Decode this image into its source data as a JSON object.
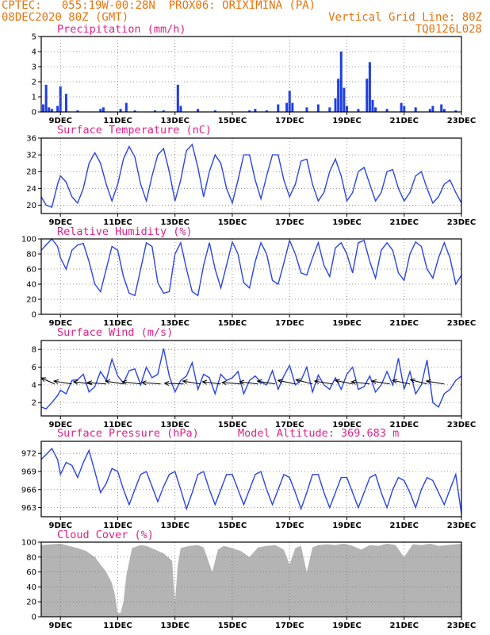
{
  "header": {
    "line1": "CPTEC:   055:19W-00:28N  PROX06: ORIXIMINA (PA)",
    "line2_left": "08DEC2020 80Z (GMT)",
    "line2_right": "Vertical Grid Line: 80Z",
    "line3_right": "TQ0126L028"
  },
  "x_axis": {
    "ticks": [
      "9DEC",
      "11DEC",
      "13DEC",
      "15DEC",
      "17DEC",
      "19DEC",
      "21DEC",
      "23DEC"
    ]
  },
  "colors": {
    "header": "#e8730a",
    "title": "#e0208a",
    "line": "#2a44e6",
    "bar": "#1f3fe0",
    "cloud": "#b4b4b4",
    "grid": "#7a7a7a"
  },
  "chart_data": [
    {
      "type": "bar",
      "title": "Precipitation (mm/h)",
      "xlabel": "",
      "ylabel": "",
      "ylim": [
        0,
        5
      ],
      "yticks": [
        "0",
        "1",
        "2",
        "3",
        "4",
        "5"
      ],
      "x_range_days": [
        8.33,
        23
      ],
      "x_days": [
        8.4,
        8.5,
        8.6,
        8.7,
        8.9,
        9.0,
        9.2,
        9.6,
        10.4,
        10.5,
        11.1,
        11.3,
        11.6,
        12.3,
        12.6,
        13.1,
        13.2,
        13.8,
        14.4,
        15.6,
        15.8,
        16.2,
        16.6,
        16.9,
        17.0,
        17.1,
        17.6,
        18.0,
        18.4,
        18.6,
        18.7,
        18.8,
        18.9,
        19.0,
        19.4,
        19.7,
        19.8,
        19.9,
        20.0,
        20.4,
        20.9,
        21.0,
        21.4,
        21.9,
        22.0,
        22.3,
        22.4,
        22.8
      ],
      "values": [
        0.5,
        1.8,
        0.3,
        0.2,
        0.4,
        1.7,
        1.2,
        0.1,
        0.2,
        0.3,
        0.2,
        0.6,
        0.1,
        0.1,
        0.1,
        1.8,
        0.4,
        0.2,
        0.1,
        0.1,
        0.2,
        0.1,
        0.5,
        0.6,
        1.4,
        0.6,
        0.3,
        0.5,
        0.3,
        0.9,
        2.2,
        4.0,
        1.6,
        0.4,
        0.2,
        2.2,
        3.3,
        0.8,
        0.3,
        0.2,
        0.6,
        0.4,
        0.3,
        0.2,
        0.4,
        0.5,
        0.2,
        0.1
      ]
    },
    {
      "type": "line",
      "title": "Surface Temperature (nC)",
      "xlabel": "",
      "ylabel": "",
      "ylim": [
        18,
        36
      ],
      "yticks": [
        "20",
        "24",
        "28",
        "32",
        "36"
      ],
      "x_range_days": [
        8.33,
        23
      ],
      "days": [
        8.33,
        8.5,
        8.7,
        8.9,
        9.0,
        9.2,
        9.4,
        9.6,
        9.8,
        10.0,
        10.2,
        10.4,
        10.6,
        10.8,
        11.0,
        11.2,
        11.4,
        11.6,
        11.8,
        12.0,
        12.2,
        12.4,
        12.6,
        12.8,
        13.0,
        13.2,
        13.4,
        13.6,
        13.8,
        14.0,
        14.2,
        14.4,
        14.6,
        14.8,
        15.0,
        15.2,
        15.4,
        15.6,
        15.8,
        16.0,
        16.2,
        16.4,
        16.6,
        16.8,
        17.0,
        17.2,
        17.4,
        17.6,
        17.8,
        18.0,
        18.2,
        18.4,
        18.6,
        18.8,
        19.0,
        19.2,
        19.4,
        19.6,
        19.8,
        20.0,
        20.2,
        20.4,
        20.6,
        20.8,
        21.0,
        21.2,
        21.4,
        21.6,
        21.8,
        22.0,
        22.2,
        22.4,
        22.6,
        22.8,
        23.0
      ],
      "values": [
        22,
        20,
        19.5,
        25,
        27,
        25.5,
        22,
        20.5,
        24,
        30,
        32.5,
        30,
        25,
        21,
        25,
        31,
        34,
        31.5,
        25,
        21,
        27,
        32,
        33.5,
        28,
        21,
        26,
        33,
        34.5,
        29,
        22,
        28,
        32,
        30,
        24,
        20.5,
        26,
        32,
        32,
        26,
        21.5,
        27,
        32,
        32,
        26,
        22,
        25,
        30.5,
        31,
        25,
        21,
        23,
        28,
        31,
        27,
        21,
        23,
        28,
        29,
        25,
        21,
        23,
        28,
        28.5,
        24,
        21,
        23,
        27,
        28,
        24,
        20.5,
        22,
        25,
        26,
        23,
        20.5
      ]
    },
    {
      "type": "line",
      "title": "Relative Humidity (%)",
      "xlabel": "",
      "ylabel": "",
      "ylim": [
        0,
        100
      ],
      "yticks": [
        "0",
        "20",
        "40",
        "60",
        "80",
        "100"
      ],
      "x_range_days": [
        8.33,
        23
      ],
      "days": [
        8.33,
        8.5,
        8.7,
        8.9,
        9.0,
        9.2,
        9.4,
        9.6,
        9.8,
        10.0,
        10.2,
        10.4,
        10.6,
        10.8,
        11.0,
        11.2,
        11.4,
        11.6,
        11.8,
        12.0,
        12.2,
        12.4,
        12.6,
        12.8,
        13.0,
        13.2,
        13.4,
        13.6,
        13.8,
        14.0,
        14.2,
        14.4,
        14.6,
        14.8,
        15.0,
        15.2,
        15.4,
        15.6,
        15.8,
        16.0,
        16.2,
        16.4,
        16.6,
        16.8,
        17.0,
        17.2,
        17.4,
        17.6,
        17.8,
        18.0,
        18.2,
        18.4,
        18.6,
        18.8,
        19.0,
        19.2,
        19.4,
        19.6,
        19.8,
        20.0,
        20.2,
        20.4,
        20.6,
        20.8,
        21.0,
        21.2,
        21.4,
        21.6,
        21.8,
        22.0,
        22.2,
        22.4,
        22.6,
        22.8,
        23.0
      ],
      "values": [
        85,
        92,
        100,
        90,
        75,
        60,
        85,
        92,
        94,
        70,
        40,
        30,
        60,
        90,
        85,
        50,
        28,
        25,
        60,
        95,
        90,
        42,
        28,
        30,
        80,
        95,
        60,
        30,
        25,
        65,
        95,
        60,
        35,
        65,
        96,
        80,
        42,
        35,
        70,
        95,
        80,
        45,
        40,
        68,
        98,
        80,
        55,
        52,
        75,
        95,
        65,
        50,
        88,
        95,
        80,
        55,
        95,
        98,
        70,
        48,
        85,
        95,
        85,
        55,
        45,
        80,
        96,
        90,
        60,
        48,
        75,
        95,
        75,
        40,
        52
      ]
    },
    {
      "type": "line",
      "title": "Surface Wind (m/s)",
      "xlabel": "",
      "ylabel": "",
      "ylim": [
        0.5,
        9
      ],
      "yticks": [
        "2",
        "4",
        "6",
        "8"
      ],
      "x_range_days": [
        8.33,
        23
      ],
      "days": [
        8.33,
        8.5,
        8.7,
        8.9,
        9.0,
        9.2,
        9.4,
        9.6,
        9.8,
        10.0,
        10.2,
        10.4,
        10.6,
        10.8,
        11.0,
        11.2,
        11.4,
        11.6,
        11.8,
        12.0,
        12.2,
        12.4,
        12.6,
        12.8,
        13.0,
        13.2,
        13.4,
        13.6,
        13.8,
        14.0,
        14.2,
        14.4,
        14.6,
        14.8,
        15.0,
        15.2,
        15.4,
        15.6,
        15.8,
        16.0,
        16.2,
        16.4,
        16.6,
        16.8,
        17.0,
        17.2,
        17.4,
        17.6,
        17.8,
        18.0,
        18.2,
        18.4,
        18.6,
        18.8,
        19.0,
        19.2,
        19.4,
        19.6,
        19.8,
        20.0,
        20.2,
        20.4,
        20.6,
        20.8,
        21.0,
        21.2,
        21.4,
        21.6,
        21.8,
        22.0,
        22.2,
        22.4,
        22.6,
        22.8,
        23.0
      ],
      "values": [
        1.5,
        1.3,
        2.0,
        2.8,
        3.4,
        3.0,
        4.5,
        4.6,
        5.2,
        3.2,
        3.8,
        5.5,
        4.5,
        6.9,
        5.0,
        4.2,
        5.6,
        5.8,
        4.0,
        6.0,
        4.8,
        5.2,
        8.1,
        5.0,
        3.2,
        4.5,
        5.0,
        6.5,
        3.5,
        5.2,
        4.8,
        3.0,
        5.2,
        4.5,
        4.8,
        5.5,
        3.0,
        4.5,
        5.0,
        4.3,
        4.0,
        5.6,
        3.5,
        5.0,
        6.2,
        4.0,
        4.5,
        6.0,
        3.2,
        5.1,
        4.0,
        3.5,
        4.8,
        3.5,
        5.2,
        6.0,
        3.5,
        3.8,
        5.0,
        3.2,
        4.0,
        5.5,
        4.0,
        7.0,
        3.5,
        5.5,
        3.0,
        4.0,
        6.8,
        2.0,
        1.5,
        3.0,
        3.5,
        4.5,
        5.0
      ],
      "vector_days": [
        8.8,
        9.4,
        10.1,
        10.6,
        11.2,
        11.8,
        12.5,
        13.3,
        13.9,
        14.6,
        15.3,
        15.9,
        16.5,
        17.2,
        17.8,
        18.5,
        19.2,
        19.8,
        20.5,
        21.2,
        21.8,
        22.4
      ],
      "vector_angles_deg": [
        225,
        200,
        195,
        190,
        200,
        195,
        190,
        185,
        200,
        195,
        190,
        195,
        200,
        205,
        210,
        200,
        205,
        195,
        200,
        205,
        210,
        200
      ]
    },
    {
      "type": "line",
      "title": "Surface Pressure (hPa)",
      "annotation": "Model Altitude: 369.683 m",
      "xlabel": "",
      "ylabel": "",
      "ylim": [
        961.5,
        974
      ],
      "yticks": [
        "963",
        "966",
        "969",
        "972"
      ],
      "x_range_days": [
        8.33,
        23
      ],
      "days": [
        8.33,
        8.5,
        8.7,
        8.9,
        9.0,
        9.2,
        9.4,
        9.6,
        9.8,
        10.0,
        10.2,
        10.4,
        10.6,
        10.8,
        11.0,
        11.2,
        11.4,
        11.6,
        11.8,
        12.0,
        12.2,
        12.4,
        12.6,
        12.8,
        13.0,
        13.2,
        13.4,
        13.6,
        13.8,
        14.0,
        14.2,
        14.4,
        14.6,
        14.8,
        15.0,
        15.2,
        15.4,
        15.6,
        15.8,
        16.0,
        16.2,
        16.4,
        16.6,
        16.8,
        17.0,
        17.2,
        17.4,
        17.6,
        17.8,
        18.0,
        18.2,
        18.4,
        18.6,
        18.8,
        19.0,
        19.2,
        19.4,
        19.6,
        19.8,
        20.0,
        20.2,
        20.4,
        20.6,
        20.8,
        21.0,
        21.2,
        21.4,
        21.6,
        21.8,
        22.0,
        22.2,
        22.4,
        22.6,
        22.8,
        23.0
      ],
      "values": [
        971,
        971.8,
        972.8,
        971,
        968.5,
        970.5,
        970,
        968,
        970.5,
        972.5,
        969,
        965.5,
        967,
        969.5,
        969,
        966,
        963.5,
        966,
        968.5,
        969,
        966.5,
        964,
        966.5,
        968.5,
        969,
        966,
        962.8,
        965.5,
        968.5,
        969,
        966,
        963.5,
        966,
        968.5,
        968.5,
        966,
        963.5,
        966,
        968.5,
        969,
        966,
        963.5,
        966,
        968.5,
        968,
        965.5,
        962.8,
        965.5,
        968.5,
        968.5,
        965.5,
        963,
        965.5,
        968,
        968,
        965.5,
        963,
        965.5,
        968,
        968.5,
        965.5,
        963,
        966,
        968,
        967.5,
        965.5,
        963,
        966,
        968,
        967.5,
        965.5,
        963.5,
        966,
        968.5,
        962
      ]
    },
    {
      "type": "area",
      "title": "Cloud Cover (%)",
      "xlabel": "",
      "ylabel": "",
      "ylim": [
        0,
        100
      ],
      "yticks": [
        "0",
        "20",
        "40",
        "60",
        "80",
        "100"
      ],
      "x_range_days": [
        8.33,
        23
      ],
      "days": [
        8.33,
        8.7,
        9.0,
        9.3,
        9.6,
        9.9,
        10.2,
        10.4,
        10.6,
        10.8,
        10.9,
        11.0,
        11.1,
        11.2,
        11.3,
        11.5,
        11.8,
        12.0,
        12.3,
        12.6,
        12.9,
        13.0,
        13.1,
        13.2,
        13.5,
        13.8,
        14.0,
        14.3,
        14.5,
        14.7,
        15.0,
        15.3,
        15.6,
        15.9,
        16.2,
        16.5,
        16.8,
        17.0,
        17.2,
        17.4,
        17.6,
        17.8,
        18.0,
        18.3,
        18.6,
        18.9,
        19.2,
        19.5,
        19.8,
        20.1,
        20.4,
        20.7,
        21.0,
        21.3,
        21.6,
        21.9,
        22.2,
        22.5,
        22.8,
        23.0
      ],
      "values": [
        96,
        97,
        98,
        95,
        92,
        88,
        80,
        70,
        60,
        45,
        30,
        5,
        5,
        20,
        55,
        92,
        96,
        95,
        90,
        85,
        75,
        20,
        70,
        92,
        95,
        96,
        93,
        60,
        90,
        95,
        92,
        88,
        80,
        93,
        95,
        96,
        90,
        70,
        92,
        95,
        60,
        93,
        96,
        97,
        96,
        98,
        95,
        90,
        96,
        95,
        98,
        96,
        80,
        97,
        96,
        98,
        95,
        96,
        97,
        98
      ]
    }
  ]
}
